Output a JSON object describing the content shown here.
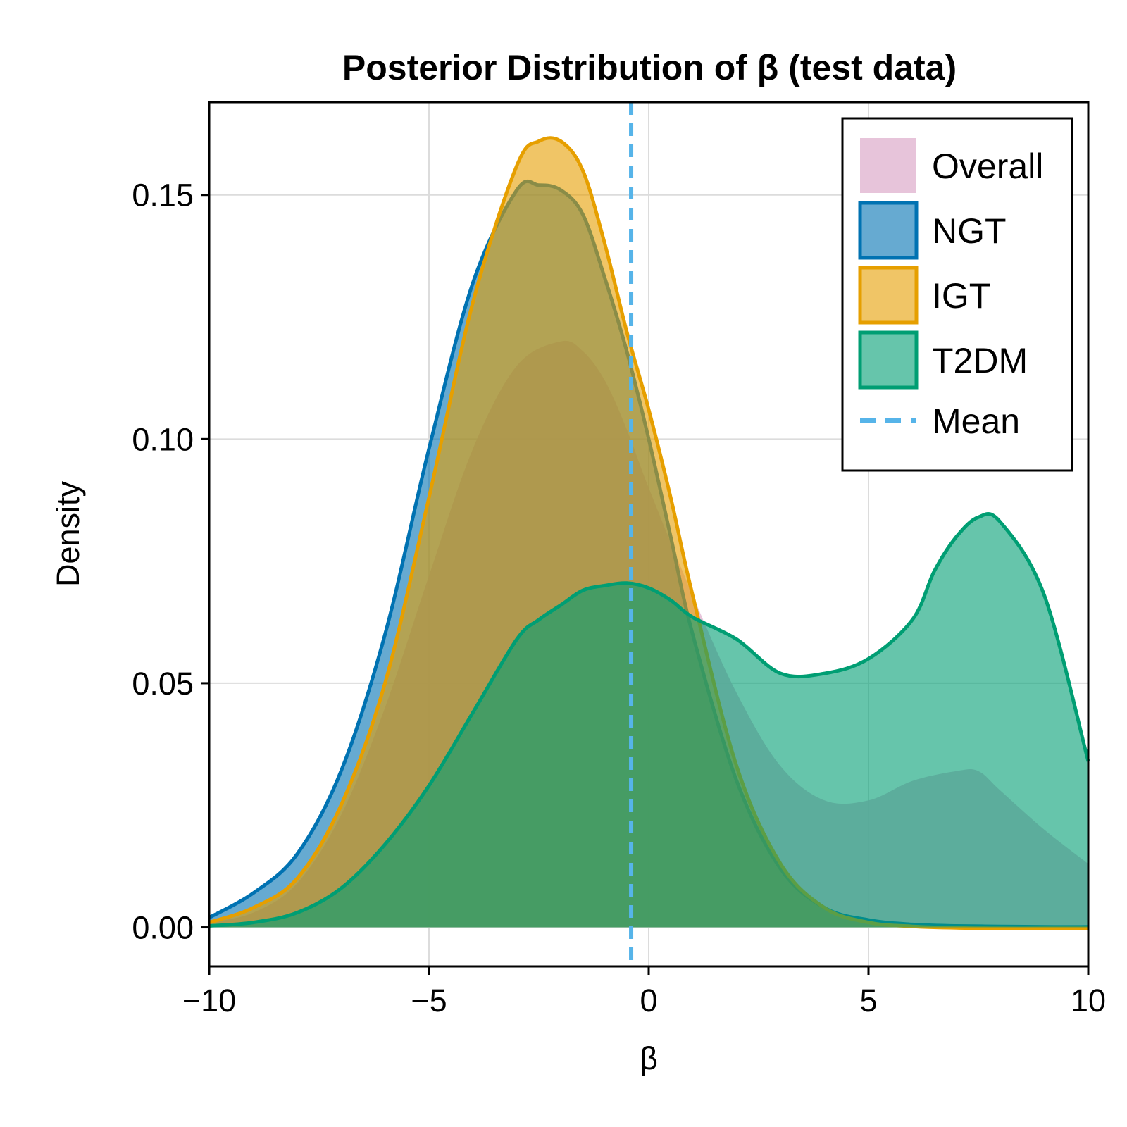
{
  "chart_data": {
    "type": "area",
    "title": "Posterior Distribution of β (test data)",
    "xlabel": "β",
    "ylabel": "Density",
    "xlim": [
      -10,
      10
    ],
    "ylim": [
      -0.008,
      0.169
    ],
    "x_ticks": [
      {
        "value": -10,
        "label": "−10"
      },
      {
        "value": -5,
        "label": "−5"
      },
      {
        "value": 0,
        "label": "0"
      },
      {
        "value": 5,
        "label": "5"
      },
      {
        "value": 10,
        "label": "10"
      }
    ],
    "y_ticks": [
      {
        "value": 0.0,
        "label": "0.00"
      },
      {
        "value": 0.05,
        "label": "0.05"
      },
      {
        "value": 0.1,
        "label": "0.10"
      },
      {
        "value": 0.15,
        "label": "0.15"
      }
    ],
    "grid": true,
    "legend_position": "top-right",
    "mean_line": {
      "name": "Mean",
      "x": -0.4,
      "color": "#56b4e9",
      "style": "dashed"
    },
    "series": [
      {
        "name": "Overall",
        "fill": "#e3bad3",
        "stroke": null,
        "x": [
          -10,
          -9,
          -8,
          -7,
          -6,
          -5,
          -4,
          -3,
          -2,
          -1.5,
          -1,
          -0.5,
          0,
          1,
          2,
          3,
          4,
          5,
          6,
          7,
          7.5,
          8,
          9,
          10
        ],
        "y": [
          0.001,
          0.003,
          0.009,
          0.023,
          0.045,
          0.072,
          0.098,
          0.115,
          0.12,
          0.118,
          0.112,
          0.102,
          0.09,
          0.068,
          0.048,
          0.033,
          0.026,
          0.026,
          0.03,
          0.032,
          0.032,
          0.028,
          0.02,
          0.013
        ]
      },
      {
        "name": "NGT",
        "fill": "#0072b2",
        "stroke": "#0072b2",
        "x": [
          -10,
          -9,
          -8,
          -7,
          -6,
          -5,
          -4,
          -3,
          -2.5,
          -2,
          -1.5,
          -1,
          -0.5,
          0,
          0.5,
          1,
          2,
          3,
          4,
          5,
          6,
          7,
          8,
          9,
          10
        ],
        "y": [
          0.002,
          0.007,
          0.015,
          0.032,
          0.06,
          0.098,
          0.132,
          0.151,
          0.152,
          0.151,
          0.146,
          0.133,
          0.118,
          0.1,
          0.08,
          0.06,
          0.03,
          0.012,
          0.004,
          0.0015,
          0.0006,
          0.0003,
          0.0002,
          0.0001,
          0.0001
        ]
      },
      {
        "name": "IGT",
        "fill": "#e69f00",
        "stroke": "#e69f00",
        "x": [
          -10,
          -9,
          -8,
          -7,
          -6,
          -5,
          -4,
          -3,
          -2.5,
          -2,
          -1.5,
          -1,
          -0.5,
          0,
          0.5,
          1,
          2,
          3,
          4,
          5,
          6,
          7,
          8,
          9,
          10
        ],
        "y": [
          0.001,
          0.004,
          0.01,
          0.025,
          0.05,
          0.088,
          0.128,
          0.156,
          0.161,
          0.161,
          0.155,
          0.14,
          0.122,
          0.106,
          0.088,
          0.068,
          0.033,
          0.013,
          0.004,
          0.001,
          0.0002,
          -0.0001,
          -0.0002,
          -0.0002,
          -0.0002
        ]
      },
      {
        "name": "T2DM",
        "fill": "#009e73",
        "stroke": "#009e73",
        "x": [
          -10,
          -9,
          -8,
          -7,
          -6,
          -5,
          -4,
          -3,
          -2.5,
          -2,
          -1.5,
          -1,
          -0.5,
          0,
          0.5,
          1,
          2,
          3,
          4,
          5,
          6,
          6.5,
          7,
          7.5,
          8,
          9,
          10
        ],
        "y": [
          0.0003,
          0.001,
          0.003,
          0.008,
          0.017,
          0.029,
          0.044,
          0.059,
          0.063,
          0.066,
          0.069,
          0.07,
          0.0705,
          0.0695,
          0.067,
          0.0635,
          0.059,
          0.052,
          0.052,
          0.055,
          0.063,
          0.073,
          0.08,
          0.084,
          0.083,
          0.068,
          0.034
        ]
      }
    ]
  }
}
